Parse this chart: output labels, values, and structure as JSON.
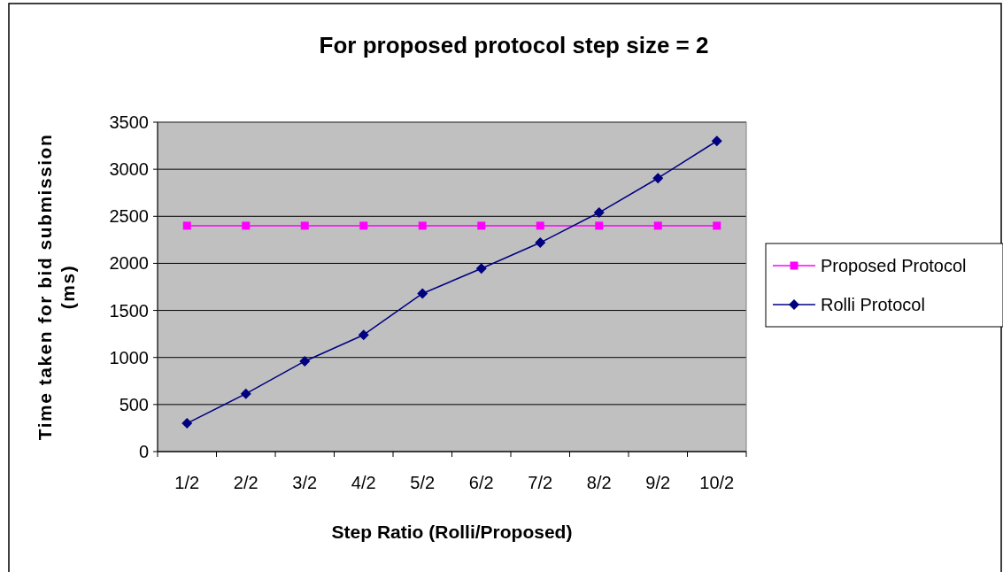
{
  "chart_data": {
    "type": "line",
    "title": "For proposed protocol step size = 2",
    "xlabel": "Step Ratio (Rolli/Proposed)",
    "ylabel": "Time taken for bid submission (ms)",
    "categories": [
      "1/2",
      "2/2",
      "3/2",
      "4/2",
      "5/2",
      "6/2",
      "7/2",
      "8/2",
      "9/2",
      "10/2"
    ],
    "series": [
      {
        "name": "Proposed Protocol",
        "color": "#ff00ff",
        "marker": "square",
        "values": [
          2400,
          2400,
          2400,
          2400,
          2400,
          2400,
          2400,
          2400,
          2400,
          2400
        ]
      },
      {
        "name": "Rolli Protocol",
        "color": "#000080",
        "marker": "diamond",
        "values": [
          300,
          615,
          960,
          1240,
          1680,
          1945,
          2220,
          2540,
          2905,
          3300
        ]
      }
    ],
    "ylim": [
      0,
      3500
    ],
    "yticks": [
      0,
      500,
      1000,
      1500,
      2000,
      2500,
      3000,
      3500
    ],
    "grid": "y",
    "legend": "right"
  }
}
